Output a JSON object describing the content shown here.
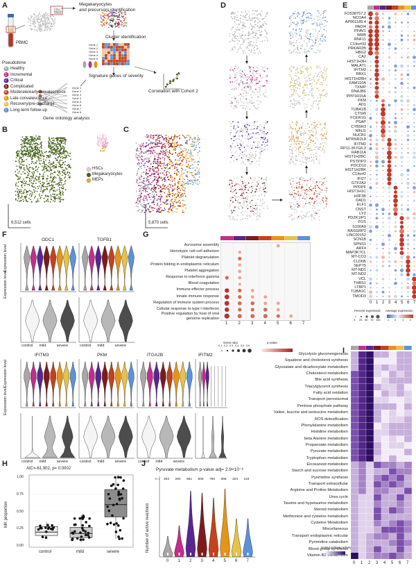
{
  "panels": {
    "a": "A",
    "b": "B",
    "c": "C",
    "d": "D",
    "e": "E",
    "f": "F",
    "g": "G",
    "h": "H",
    "i": "I",
    "j": "J"
  },
  "colors": {
    "healthy": "#a7a7a7",
    "incremental": "#c22f8a",
    "critical": "#5a2590",
    "complicated": "#7d1b1b",
    "moderate": "#c4421a",
    "late": "#e69419",
    "recovery": "#e7c24a",
    "longterm": "#5b93d8",
    "hsc": "#f0c3de",
    "mk": "#48621b",
    "mep": "#d8b126"
  },
  "panel_a": {
    "pbmc": "PBMC",
    "step1": "Megakaryocytes\nand precursors identification",
    "step2": "Cluster identification",
    "genes": [
      "Gene 1",
      "Gene 2",
      "Gene 3",
      "Gene 4",
      "Gene 5",
      "Gene 6",
      "Gene 7",
      "Gene 8"
    ],
    "step3": "Signature genes of severity",
    "step4": "Correlation with Cohort 2",
    "step5": "Gene ontology analysis",
    "pseudotime_title": "Pseudotime",
    "pseudotime": [
      {
        "n": "0",
        "label": "Healthy",
        "color": "#a7a7a7"
      },
      {
        "n": "1",
        "label": "Incremental",
        "color": "#c22f8a"
      },
      {
        "n": "2",
        "label": "Critical",
        "color": "#5a2590"
      },
      {
        "n": "3",
        "label": "Complicated",
        "color": "#7d1b1b"
      },
      {
        "n": "4",
        "label": "Moderate/earlyconvalescence",
        "color": "#c4421a"
      },
      {
        "n": "5",
        "label": "Late convalescence",
        "color": "#e69419"
      },
      {
        "n": "6",
        "label": "Recovery/pre-discharge",
        "color": "#e7c24a"
      },
      {
        "n": "7",
        "label": "Long-term follow-up",
        "color": "#5b93d8"
      }
    ]
  },
  "panel_b": {
    "legend": [
      {
        "label": "HSCs",
        "color": "#f0c3de"
      },
      {
        "label": "Megakaryocytes",
        "color": "#48621b"
      },
      {
        "label": "MEPs",
        "color": "#d8b126"
      }
    ],
    "cells": "6,512 cells"
  },
  "panel_c": {
    "cells": "5,870 cells"
  },
  "panel_e": {
    "genes": [
      "FO538757.2",
      "NCOA4",
      "AP001189.4",
      "PADI4",
      "PFAV1",
      "WRB",
      "RNF11",
      "C19orf33",
      "PRKAR2B",
      "HBG2",
      "CA2",
      "HIST1H3H",
      "MALAT1",
      "IFITM3",
      "RBX1",
      "HIST1H2BH",
      "FAM110A",
      "TXNIP",
      "DNAJB6",
      "PPP1R15A",
      "PKM",
      "AD1",
      "TUBA1B",
      "CTSW",
      "FCER1G",
      "PSAP",
      "CYB5R3",
      "NINJ1",
      "NUCB1",
      "MTRNR2L8",
      "IFITM2",
      "RP11-367G6.3",
      "RAB11A",
      "HIST1H2BC",
      "PSTPIP2",
      "PDCD10",
      "HIST1H2BK",
      "C14orf2",
      "IFI27",
      "GTF2A2",
      "PPDPF",
      "HIST1H1C",
      "H3F3B",
      "DAD1",
      "ELF1",
      "CNST",
      "LYZ",
      "PDZK1IP1",
      "FOS",
      "S100A9",
      "RASGRP2",
      "LINC00152",
      "SCN1B",
      "SPNS1",
      "ARF4",
      "MAP3K7CL",
      "MT-CO3",
      "CLDN5",
      "SEPT5",
      "MT-ND1",
      "MT-ND2",
      "VCL",
      "THBS1",
      "LTBP1",
      "TUBA1C",
      "TMOD3"
    ],
    "cols": [
      "0",
      "1",
      "2",
      "3",
      "4",
      "5",
      "6",
      "7"
    ],
    "legend_pct": "Percent expressed",
    "legend_avg": "Average expression",
    "pct_ticks": [
      "0",
      "25",
      "50",
      "75",
      "100"
    ],
    "avg_ticks": [
      "-1",
      "0",
      "1",
      "2"
    ]
  },
  "panel_f": {
    "top_genes": [
      "ODC1",
      "TGFB1"
    ],
    "bottom_genes": [
      "IFITM3",
      "PKM",
      "ITGA2B",
      "IFITM2"
    ],
    "ylabel": "Expression level",
    "groups": [
      "control",
      "mild",
      "severe"
    ]
  },
  "panel_g": {
    "terms": [
      "Acrosome assembly",
      "Homotypic cell-cell adhesion",
      "Platelet degranulation",
      "Protein folding in endoplasmic reticulum",
      "Platelet aggregation",
      "Response to interferon gamma",
      "Blood coagulation",
      "Immune effector process",
      "Innate immune response",
      "Regulation of immune system process",
      "Cellular response to type I interferon",
      "Positive regulation by host of viral\ngenome replication"
    ],
    "cols": [
      "1",
      "2",
      "3",
      "4",
      "5",
      "6",
      "7"
    ],
    "legend_ratio": "Gene ratio",
    "legend_p": "p-value",
    "ratio_ticks": [
      "0.1",
      "0.2",
      "0.3",
      "0.4",
      "0.5",
      "0.6"
    ]
  },
  "panel_h": {
    "stat": "AIC=-61.902, p= 0.0002",
    "ylabel": "MK proportion",
    "yticks": [
      "1.00",
      "0.75",
      "0.50",
      "0.25",
      "0.00"
    ],
    "groups": [
      "control",
      "mild",
      "severe"
    ]
  },
  "panel_i": {
    "pathways": [
      "Glycolysis gluconeogenesis",
      "Squalene and cholesterol synthesis",
      "Glyoxalate and dicarboxylate metabolism",
      "Cholesterol metabolism",
      "Bile acid synthesis",
      "Triacylglycerol synthesis",
      "Fatty acid oxidation",
      "Transport peroxisomal",
      "Pentose phosphate pathway",
      "Valine, leucine and isoleucine metabolism",
      "ROS detoxification",
      "Phenylalanine metabolism",
      "Histidine metabolism",
      "beta Alanine metabolism",
      "Propanoate metabolism",
      "Pyruvate metabolism",
      "Tryptophan metabolism",
      "Eicosanoid metabolism",
      "Starch and sucrose metabolism",
      "Pyrimidine synthesis",
      "Transport extracellular",
      "Arginine and Proline Metabolism",
      "Urea cycle",
      "Taurine and hypotaurine metabolism",
      "Steroid metabolism",
      "Methionine and cysteine metabolism",
      "Cysteine Metabolism",
      "Miscellaneous",
      "Transport endoplasmic reticular",
      "Pyrimidine catabolism",
      "Blood group synthesis",
      "Vitamin B2 metabolism"
    ],
    "cols": [
      "0",
      "1",
      "2",
      "3",
      "4",
      "5",
      "6",
      "7"
    ],
    "legend": "Scaled pathway activity"
  },
  "panel_j": {
    "title": "Pyruvate metabolism p-value adj= 2.9×10⁻⁸",
    "ylabel": "Number of active reactions",
    "n_label": "n =",
    "counts": [
      "303",
      "290",
      "681",
      "508",
      "790",
      "898",
      "324",
      "118"
    ],
    "xticks": [
      "0",
      "1",
      "2",
      "3",
      "4",
      "5",
      "6",
      "7"
    ]
  }
}
